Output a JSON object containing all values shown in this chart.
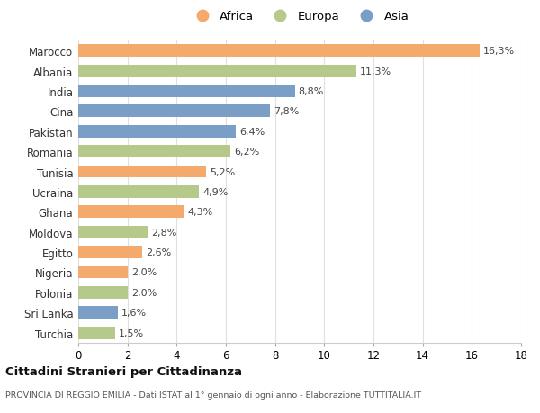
{
  "categories": [
    "Marocco",
    "Albania",
    "India",
    "Cina",
    "Pakistan",
    "Romania",
    "Tunisia",
    "Ucraina",
    "Ghana",
    "Moldova",
    "Egitto",
    "Nigeria",
    "Polonia",
    "Sri Lanka",
    "Turchia"
  ],
  "values": [
    16.3,
    11.3,
    8.8,
    7.8,
    6.4,
    6.2,
    5.2,
    4.9,
    4.3,
    2.8,
    2.6,
    2.0,
    2.0,
    1.6,
    1.5
  ],
  "continents": [
    "Africa",
    "Europa",
    "Asia",
    "Asia",
    "Asia",
    "Europa",
    "Africa",
    "Europa",
    "Africa",
    "Europa",
    "Africa",
    "Africa",
    "Europa",
    "Asia",
    "Europa"
  ],
  "colors": {
    "Africa": "#F4A96D",
    "Europa": "#B5C98A",
    "Asia": "#7B9EC7"
  },
  "legend_order": [
    "Africa",
    "Europa",
    "Asia"
  ],
  "xlim": [
    0,
    18
  ],
  "xticks": [
    0,
    2,
    4,
    6,
    8,
    10,
    12,
    14,
    16,
    18
  ],
  "title": "Cittadini Stranieri per Cittadinanza",
  "subtitle": "PROVINCIA DI REGGIO EMILIA - Dati ISTAT al 1° gennaio di ogni anno - Elaborazione TUTTITALIA.IT",
  "background_color": "#ffffff",
  "grid_color": "#e0e0e0"
}
